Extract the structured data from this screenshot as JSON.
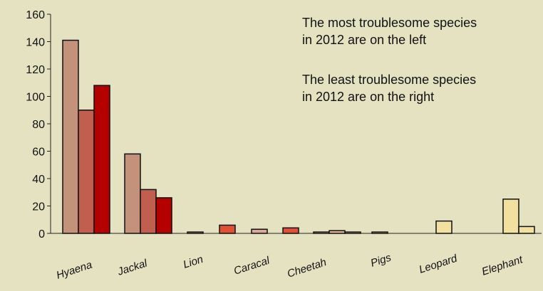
{
  "chart_data": {
    "type": "bar",
    "title": "",
    "xlabel": "",
    "ylabel": "",
    "ylim": [
      0,
      160
    ],
    "yticks": [
      0,
      20,
      40,
      60,
      80,
      100,
      120,
      140,
      160
    ],
    "grid": false,
    "legend": "none",
    "categories": [
      "Hyaena",
      "Jackal",
      "Lion",
      "Caracal",
      "Cheetah",
      "Pigs",
      "Leopard",
      "Elephant"
    ],
    "groups": [
      {
        "category": "Hyaena",
        "bars": [
          {
            "value": 141,
            "color": "#c4917a"
          },
          {
            "value": 90,
            "color": "#c05f50"
          },
          {
            "value": 108,
            "color": "#b50000"
          }
        ]
      },
      {
        "category": "Jackal",
        "bars": [
          {
            "value": 58,
            "color": "#c4917a"
          },
          {
            "value": 32,
            "color": "#c05f50"
          },
          {
            "value": 26,
            "color": "#b50000"
          }
        ]
      },
      {
        "category": "Lion",
        "bars": [
          {
            "value": 1,
            "color": "#d99a88"
          },
          {
            "value": 6,
            "color": "#e05035"
          }
        ]
      },
      {
        "category": "Caracal",
        "bars": [
          {
            "value": 3,
            "color": "#d9a896"
          },
          {
            "value": 4,
            "color": "#e05035"
          }
        ]
      },
      {
        "category": "Cheetah",
        "bars": [
          {
            "value": 1,
            "color": "#e3b49a"
          },
          {
            "value": 2,
            "color": "#e3b49a"
          },
          {
            "value": 1,
            "color": "#e3b49a"
          }
        ]
      },
      {
        "category": "Pigs",
        "bars": [
          {
            "value": 1,
            "color": "#e6c98e"
          }
        ]
      },
      {
        "category": "Leopard",
        "bars": [
          {
            "value": 9,
            "color": "#f1e0a0"
          }
        ]
      },
      {
        "category": "Elephant",
        "bars": [
          {
            "value": 25,
            "color": "#f1e0a0"
          },
          {
            "value": 5,
            "color": "#f1e0a0"
          }
        ]
      }
    ],
    "annotations": [
      [
        "The most troublesome species",
        " in 2012 are on the left"
      ],
      [
        "The least troublesome species",
        " in 2012 are on the right"
      ]
    ]
  }
}
